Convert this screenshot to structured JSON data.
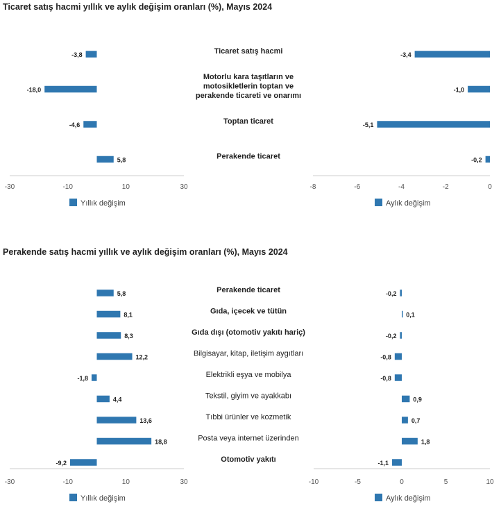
{
  "colors": {
    "bar": "#2f77b0",
    "axis": "#cccccc"
  },
  "chart_data": [
    {
      "type": "bar",
      "title": "Ticaret satış hacmi yıllık ve aylık değişim oranları (%), Mayıs 2024",
      "categories": [
        "Ticaret satış hacmi",
        "Motorlu kara taşıtların ve motosikletlerin toptan ve perakende ticareti ve onarımı",
        "Toptan ticaret",
        "Perakende ticaret"
      ],
      "category_lines": [
        [
          "Ticaret satış hacmi"
        ],
        [
          "Motorlu kara taşıtların ve",
          "motosikletlerin toptan ve",
          "perakende ticareti ve onarımı"
        ],
        [
          "Toptan ticaret"
        ],
        [
          "Perakende ticaret"
        ]
      ],
      "category_bold": [
        true,
        true,
        true,
        true
      ],
      "series": [
        {
          "name": "Yıllık değişim",
          "values": [
            -3.8,
            -18.0,
            -4.6,
            5.8
          ],
          "labels": [
            "-3,8",
            "-18,0",
            "-4,6",
            "5,8"
          ],
          "xlim": [
            -30,
            30
          ],
          "ticks": [
            -30,
            -10,
            10,
            30
          ],
          "tick_labels": [
            "-30",
            "-10",
            "10",
            "30"
          ]
        },
        {
          "name": "Aylık değişim",
          "values": [
            -3.4,
            -1.0,
            -5.1,
            -0.2
          ],
          "labels": [
            "-3,4",
            "-1,0",
            "-5,1",
            "-0,2"
          ],
          "xlim": [
            -8,
            0
          ],
          "ticks": [
            -8,
            -6,
            -4,
            -2,
            0
          ],
          "tick_labels": [
            "-8",
            "-6",
            "-4",
            "-2",
            "0"
          ]
        }
      ]
    },
    {
      "type": "bar",
      "title": "Perakende satış hacmi yıllık ve aylık değişim oranları (%), Mayıs 2024",
      "categories": [
        "Perakende ticaret",
        "Gıda, içecek ve tütün",
        "Gıda dışı (otomotiv yakıtı hariç)",
        "Bilgisayar, kitap, iletişim aygıtları",
        "Elektrikli eşya ve mobilya",
        "Tekstil, giyim ve ayakkabı",
        "Tıbbi ürünler ve kozmetik",
        "Posta veya internet üzerinden",
        "Otomotiv yakıtı"
      ],
      "category_lines": [
        [
          "Perakende ticaret"
        ],
        [
          "Gıda, içecek ve tütün"
        ],
        [
          "Gıda dışı (otomotiv yakıtı hariç)"
        ],
        [
          "Bilgisayar, kitap, iletişim aygıtları"
        ],
        [
          "Elektrikli eşya ve mobilya"
        ],
        [
          "Tekstil, giyim ve ayakkabı"
        ],
        [
          "Tıbbi ürünler ve kozmetik"
        ],
        [
          "Posta veya internet üzerinden"
        ],
        [
          "Otomotiv yakıtı"
        ]
      ],
      "category_bold": [
        true,
        true,
        true,
        false,
        false,
        false,
        false,
        false,
        true
      ],
      "series": [
        {
          "name": "Yıllık değişim",
          "values": [
            5.8,
            8.1,
            8.3,
            12.2,
            -1.8,
            4.4,
            13.6,
            18.8,
            -9.2
          ],
          "labels": [
            "5,8",
            "8,1",
            "8,3",
            "12,2",
            "-1,8",
            "4,4",
            "13,6",
            "18,8",
            "-9,2"
          ],
          "xlim": [
            -30,
            30
          ],
          "ticks": [
            -30,
            -10,
            10,
            30
          ],
          "tick_labels": [
            "-30",
            "-10",
            "10",
            "30"
          ]
        },
        {
          "name": "Aylık değişim",
          "values": [
            -0.2,
            0.1,
            -0.2,
            -0.8,
            -0.8,
            0.9,
            0.7,
            1.8,
            -1.1
          ],
          "labels": [
            "-0,2",
            "0,1",
            "-0,2",
            "-0,8",
            "-0,8",
            "0,9",
            "0,7",
            "1,8",
            "-1,1"
          ],
          "xlim": [
            -10,
            10
          ],
          "ticks": [
            -10,
            -5,
            0,
            5,
            10
          ],
          "tick_labels": [
            "-10",
            "-5",
            "0",
            "5",
            "10"
          ]
        }
      ]
    }
  ]
}
